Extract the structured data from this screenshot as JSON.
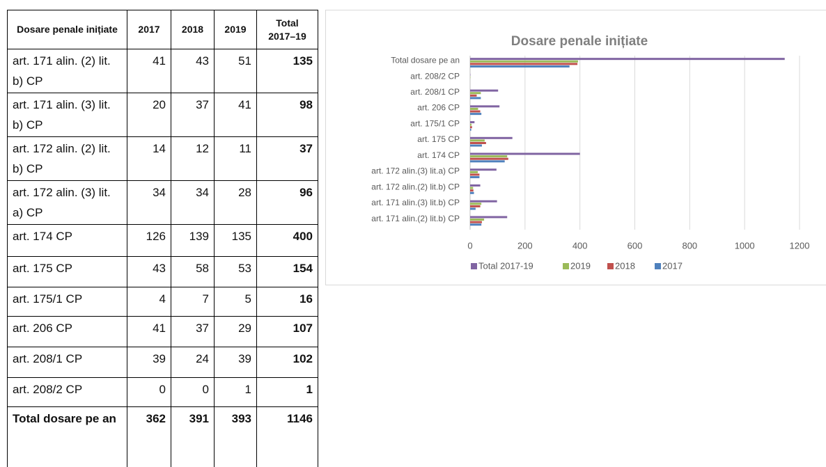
{
  "table": {
    "header": [
      "Dosare penale inițiate",
      "2017",
      "2018",
      "2019",
      "Total 2017–19"
    ],
    "rows": [
      [
        "art. 171 alin. (2) lit. b) CP",
        41,
        43,
        51,
        135
      ],
      [
        "art. 171 alin. (3) lit. b) CP",
        20,
        37,
        41,
        98
      ],
      [
        "art. 172 alin. (2) lit. b) CP",
        14,
        12,
        11,
        37
      ],
      [
        "art. 172 alin. (3) lit. a) CP",
        34,
        34,
        28,
        96
      ],
      [
        "art. 174 CP",
        126,
        139,
        135,
        400
      ],
      [
        "art. 175 CP",
        43,
        58,
        53,
        154
      ],
      [
        "art. 175/1 CP",
        4,
        7,
        5,
        16
      ],
      [
        "art. 206 CP",
        41,
        37,
        29,
        107
      ],
      [
        "art. 208/1 CP",
        39,
        24,
        39,
        102
      ],
      [
        "art. 208/2 CP",
        0,
        0,
        1,
        1
      ],
      [
        "Total dosare pe an",
        362,
        391,
        393,
        1146
      ]
    ]
  },
  "chart_data": {
    "type": "hbar",
    "title": "Dosare penale inițiate",
    "categories": [
      "art. 171 alin.(2) lit.b) CP",
      "art. 171 alin.(3) lit.b) CP",
      "art. 172 alin.(2) lit.b) CP",
      "art. 172 alin.(3) lit.a) CP",
      "art. 174 CP",
      "art. 175 CP",
      "art. 175/1 CP",
      "art. 206 CP",
      "art. 208/1 CP",
      "art. 208/2 CP",
      "Total dosare pe an"
    ],
    "series": [
      {
        "name": "Total 2017-19",
        "color": "#8064a2",
        "values": [
          135,
          98,
          37,
          96,
          400,
          154,
          16,
          107,
          102,
          1,
          1146
        ]
      },
      {
        "name": "2019",
        "color": "#9bbb59",
        "values": [
          51,
          41,
          11,
          28,
          135,
          53,
          5,
          29,
          39,
          1,
          393
        ]
      },
      {
        "name": "2018",
        "color": "#c0504d",
        "values": [
          43,
          37,
          12,
          34,
          139,
          58,
          7,
          37,
          24,
          0,
          391
        ]
      },
      {
        "name": "2017",
        "color": "#4f81bd",
        "values": [
          41,
          20,
          14,
          34,
          126,
          43,
          4,
          41,
          39,
          0,
          362
        ]
      }
    ],
    "xlim": [
      0,
      1200
    ],
    "xticks": [
      0,
      200,
      400,
      600,
      800,
      1000,
      1200
    ],
    "grid": true,
    "legend": "bottom"
  }
}
